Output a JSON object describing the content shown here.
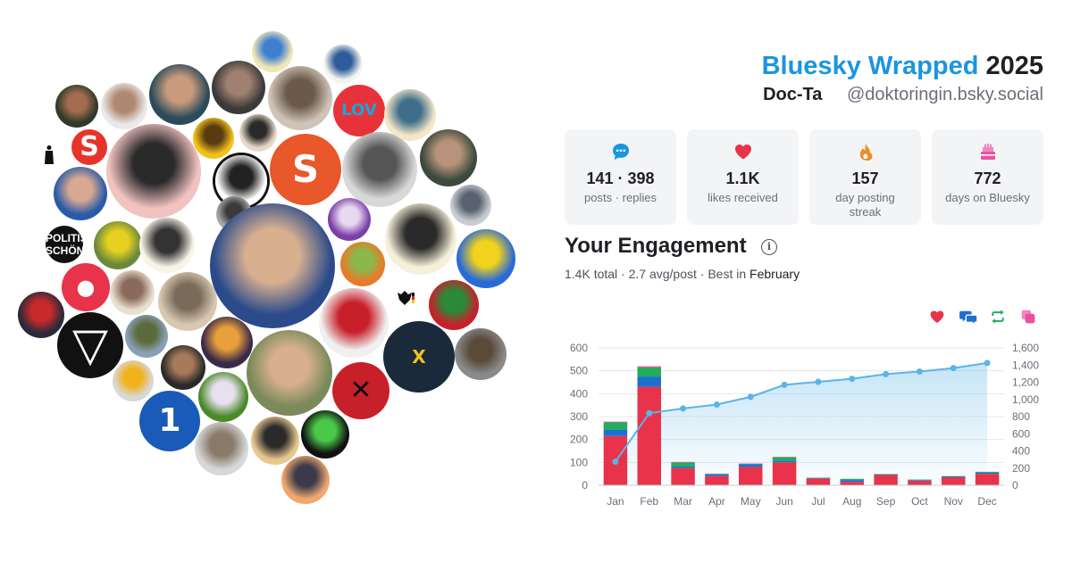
{
  "header": {
    "title_accent": "Bluesky Wrapped",
    "title_year": "2025",
    "display_name": "Doc-Ta",
    "handle": "@doktoringin.bsky.social"
  },
  "stats": [
    {
      "icon": "speech-bubble-icon",
      "value": "141 · 398",
      "label": "posts · replies",
      "color": "#1b95e0"
    },
    {
      "icon": "heart-icon",
      "value": "1.1K",
      "label": "likes received",
      "color": "#e8334a"
    },
    {
      "icon": "flame-icon",
      "value": "157",
      "label": "day posting streak",
      "color": "#f08a24"
    },
    {
      "icon": "cake-icon",
      "value": "772",
      "label": "days on Bluesky",
      "color": "#ec4fa0"
    }
  ],
  "engagement": {
    "title": "Your Engagement",
    "total": "1.4K total",
    "avg": "2.7 avg/post",
    "best_prefix": "Best in",
    "best_month": "February"
  },
  "legend": [
    {
      "icon": "heart-icon",
      "color": "#e8334a"
    },
    {
      "icon": "reply-icon",
      "color": "#1f6fd0"
    },
    {
      "icon": "repost-icon",
      "color": "#1fae5a"
    },
    {
      "icon": "quote-icon",
      "color": "#ec4fa0"
    }
  ],
  "avatars": [
    {
      "name": "avatar-blonde-woman",
      "colors": [
        "#f2e6b8",
        "#3f7fd0"
      ]
    },
    {
      "name": "avatar-man-pointing",
      "colors": [
        "#f5f5f0",
        "#2e5b9a"
      ]
    },
    {
      "name": "avatar-woman-dark-hair",
      "colors": [
        "#2f3a2b",
        "#a36b4f"
      ]
    },
    {
      "name": "avatar-bald-man-smiling",
      "colors": [
        "#e9e9e9",
        "#b08770"
      ]
    },
    {
      "name": "avatar-woman-sitting",
      "colors": [
        "#2b4a5a",
        "#c99a7c"
      ]
    },
    {
      "name": "avatar-man-grey-hair",
      "colors": [
        "#3a3a3a",
        "#a08070"
      ]
    },
    {
      "name": "avatar-people-at-event",
      "colors": [
        "#cfc4b8",
        "#6b5a4a"
      ]
    },
    {
      "name": "avatar-love-logo",
      "colors": [
        "#e8323a",
        "#18a7d8"
      ]
    },
    {
      "name": "avatar-statue",
      "colors": [
        "#f4e6c8",
        "#3f6e8a"
      ]
    },
    {
      "name": "avatar-suit-silhouette",
      "colors": [
        "#ffffff",
        "#111111"
      ]
    },
    {
      "name": "avatar-red-s-logo",
      "colors": [
        "#e8332a",
        "#ffffff"
      ]
    },
    {
      "name": "avatar-woman-sunglasses",
      "colors": [
        "#f0c2c0",
        "#2a2a2a"
      ]
    },
    {
      "name": "avatar-sunflower",
      "colors": [
        "#f2c21c",
        "#5a3a10"
      ]
    },
    {
      "name": "avatar-asian-woman",
      "colors": [
        "#e8d8c8",
        "#2a2a2a"
      ]
    },
    {
      "name": "avatar-orange-s-logo",
      "colors": [
        "#e8582a",
        "#ffffff"
      ]
    },
    {
      "name": "avatar-older-man-glasses",
      "colors": [
        "#d8d8d8",
        "#555555"
      ]
    },
    {
      "name": "avatar-bearded-man",
      "colors": [
        "#3b4a3c",
        "#b8927a"
      ]
    },
    {
      "name": "avatar-bald-man-blue",
      "colors": [
        "#2a5aa8",
        "#d8a890"
      ]
    },
    {
      "name": "avatar-black-white-portrait",
      "colors": [
        "#ffffff",
        "#222222"
      ]
    },
    {
      "name": "avatar-bacteria",
      "colors": [
        "#c8ccd2",
        "#5a6270"
      ]
    },
    {
      "name": "avatar-man-bw-suit",
      "colors": [
        "#a8a8a8",
        "#3a3a3a"
      ]
    },
    {
      "name": "avatar-dodo-logo",
      "colors": [
        "#7b3fa8",
        "#e8d8f0"
      ]
    },
    {
      "name": "avatar-anonymous-mask",
      "colors": [
        "#f5f0d8",
        "#2a2a2a"
      ]
    },
    {
      "name": "avatar-politische-schoenheit",
      "colors": [
        "#111111",
        "#ffffff"
      ]
    },
    {
      "name": "avatar-green-monster",
      "colors": [
        "#6a8a3a",
        "#e8d020"
      ]
    },
    {
      "name": "avatar-mole-cartoon",
      "colors": [
        "#f8f4e8",
        "#333333"
      ]
    },
    {
      "name": "avatar-man-ukraine",
      "colors": [
        "#2a6ad8",
        "#f2d21c"
      ]
    },
    {
      "name": "avatar-news-anchor",
      "colors": [
        "#2a4a8a",
        "#d8b090"
      ]
    },
    {
      "name": "avatar-android-logo",
      "colors": [
        "#e87a2a",
        "#8ab84a"
      ]
    },
    {
      "name": "avatar-paw-logo",
      "colors": [
        "#e8334a",
        "#ffffff"
      ]
    },
    {
      "name": "avatar-older-man-white-hair",
      "colors": [
        "#e8e0d0",
        "#8a6a5a"
      ]
    },
    {
      "name": "avatar-blonde-woman-portrait",
      "colors": [
        "#d8c8b0",
        "#7a6a5a"
      ]
    },
    {
      "name": "avatar-german-eagle",
      "colors": [
        "#ffffff",
        "#111111"
      ]
    },
    {
      "name": "avatar-cannabis-logo",
      "colors": [
        "#c8202a",
        "#2a8a3a"
      ]
    },
    {
      "name": "avatar-man-dark-red",
      "colors": [
        "#2a2a3a",
        "#c82a2a"
      ]
    },
    {
      "name": "avatar-triangle-logo",
      "colors": [
        "#111111",
        "#ffffff"
      ]
    },
    {
      "name": "avatar-landscape-trees",
      "colors": [
        "#8aa0b8",
        "#5a6a3a"
      ]
    },
    {
      "name": "avatar-rainbow",
      "colors": [
        "#3a2a4a",
        "#e8a03a"
      ]
    },
    {
      "name": "avatar-woman-red-dress",
      "colors": [
        "#f0f0f0",
        "#c8202a"
      ]
    },
    {
      "name": "avatar-letzte-generation",
      "colors": [
        "#1a2a3a",
        "#f2c21c"
      ]
    },
    {
      "name": "avatar-man-glasses-grey",
      "colors": [
        "#8a8a8a",
        "#5a4a3a"
      ]
    },
    {
      "name": "avatar-rubber-duck",
      "colors": [
        "#d8d8d8",
        "#f2b21c"
      ]
    },
    {
      "name": "avatar-man-dark-glasses",
      "colors": [
        "#2a2a2a",
        "#a87a5a"
      ]
    },
    {
      "name": "avatar-man-glasses-smiling",
      "colors": [
        "#7a8a5a",
        "#d8b090"
      ]
    },
    {
      "name": "avatar-red-black-logo",
      "colors": [
        "#c8202a",
        "#111111"
      ]
    },
    {
      "name": "avatar-tagesschau-logo",
      "colors": [
        "#1a5ab8",
        "#ffffff"
      ]
    },
    {
      "name": "avatar-orchid",
      "colors": [
        "#4a8a2a",
        "#e8e0f0"
      ]
    },
    {
      "name": "avatar-dog-sunglasses",
      "colors": [
        "#111111",
        "#4ac84a"
      ]
    },
    {
      "name": "avatar-bald-man-grey",
      "colors": [
        "#d8d8d8",
        "#8a7a6a"
      ]
    },
    {
      "name": "avatar-man-hat-silhouette",
      "colors": [
        "#e8c890",
        "#2a2a2a"
      ]
    },
    {
      "name": "avatar-sunset",
      "colors": [
        "#f0a870",
        "#3a3a4a"
      ]
    }
  ],
  "chart_data": {
    "type": "bar",
    "categories": [
      "Jan",
      "Feb",
      "Mar",
      "Apr",
      "May",
      "Jun",
      "Jul",
      "Aug",
      "Sep",
      "Oct",
      "Nov",
      "Dec"
    ],
    "series": [
      {
        "color": "#e8334a",
        "values": [
          215,
          430,
          75,
          40,
          80,
          100,
          30,
          15,
          45,
          20,
          35,
          50
        ]
      },
      {
        "color": "#1f6fd0",
        "values": [
          28,
          45,
          7,
          7,
          12,
          8,
          2,
          8,
          3,
          3,
          4,
          6
        ]
      },
      {
        "color": "#1fae5a",
        "values": [
          32,
          40,
          18,
          3,
          2,
          15,
          1,
          5,
          1,
          2,
          1,
          3
        ]
      },
      {
        "color": "#ec4fa0",
        "values": [
          3,
          5,
          2,
          1,
          1,
          1,
          0,
          0,
          0,
          0,
          0,
          0
        ]
      }
    ],
    "cumulative": {
      "color": "#5bb4e8",
      "values": [
        275,
        840,
        895,
        940,
        1030,
        1170,
        1205,
        1240,
        1295,
        1325,
        1365,
        1425
      ]
    },
    "yticks_left": [
      "0",
      "100",
      "200",
      "300",
      "400",
      "500",
      "600"
    ],
    "yticks_right": [
      "0",
      "200",
      "400",
      "600",
      "800",
      "1,000",
      "1,200",
      "1,400",
      "1,600"
    ],
    "ylim_left": [
      0,
      600
    ],
    "ylim_right": [
      0,
      1600
    ],
    "grid": true
  }
}
